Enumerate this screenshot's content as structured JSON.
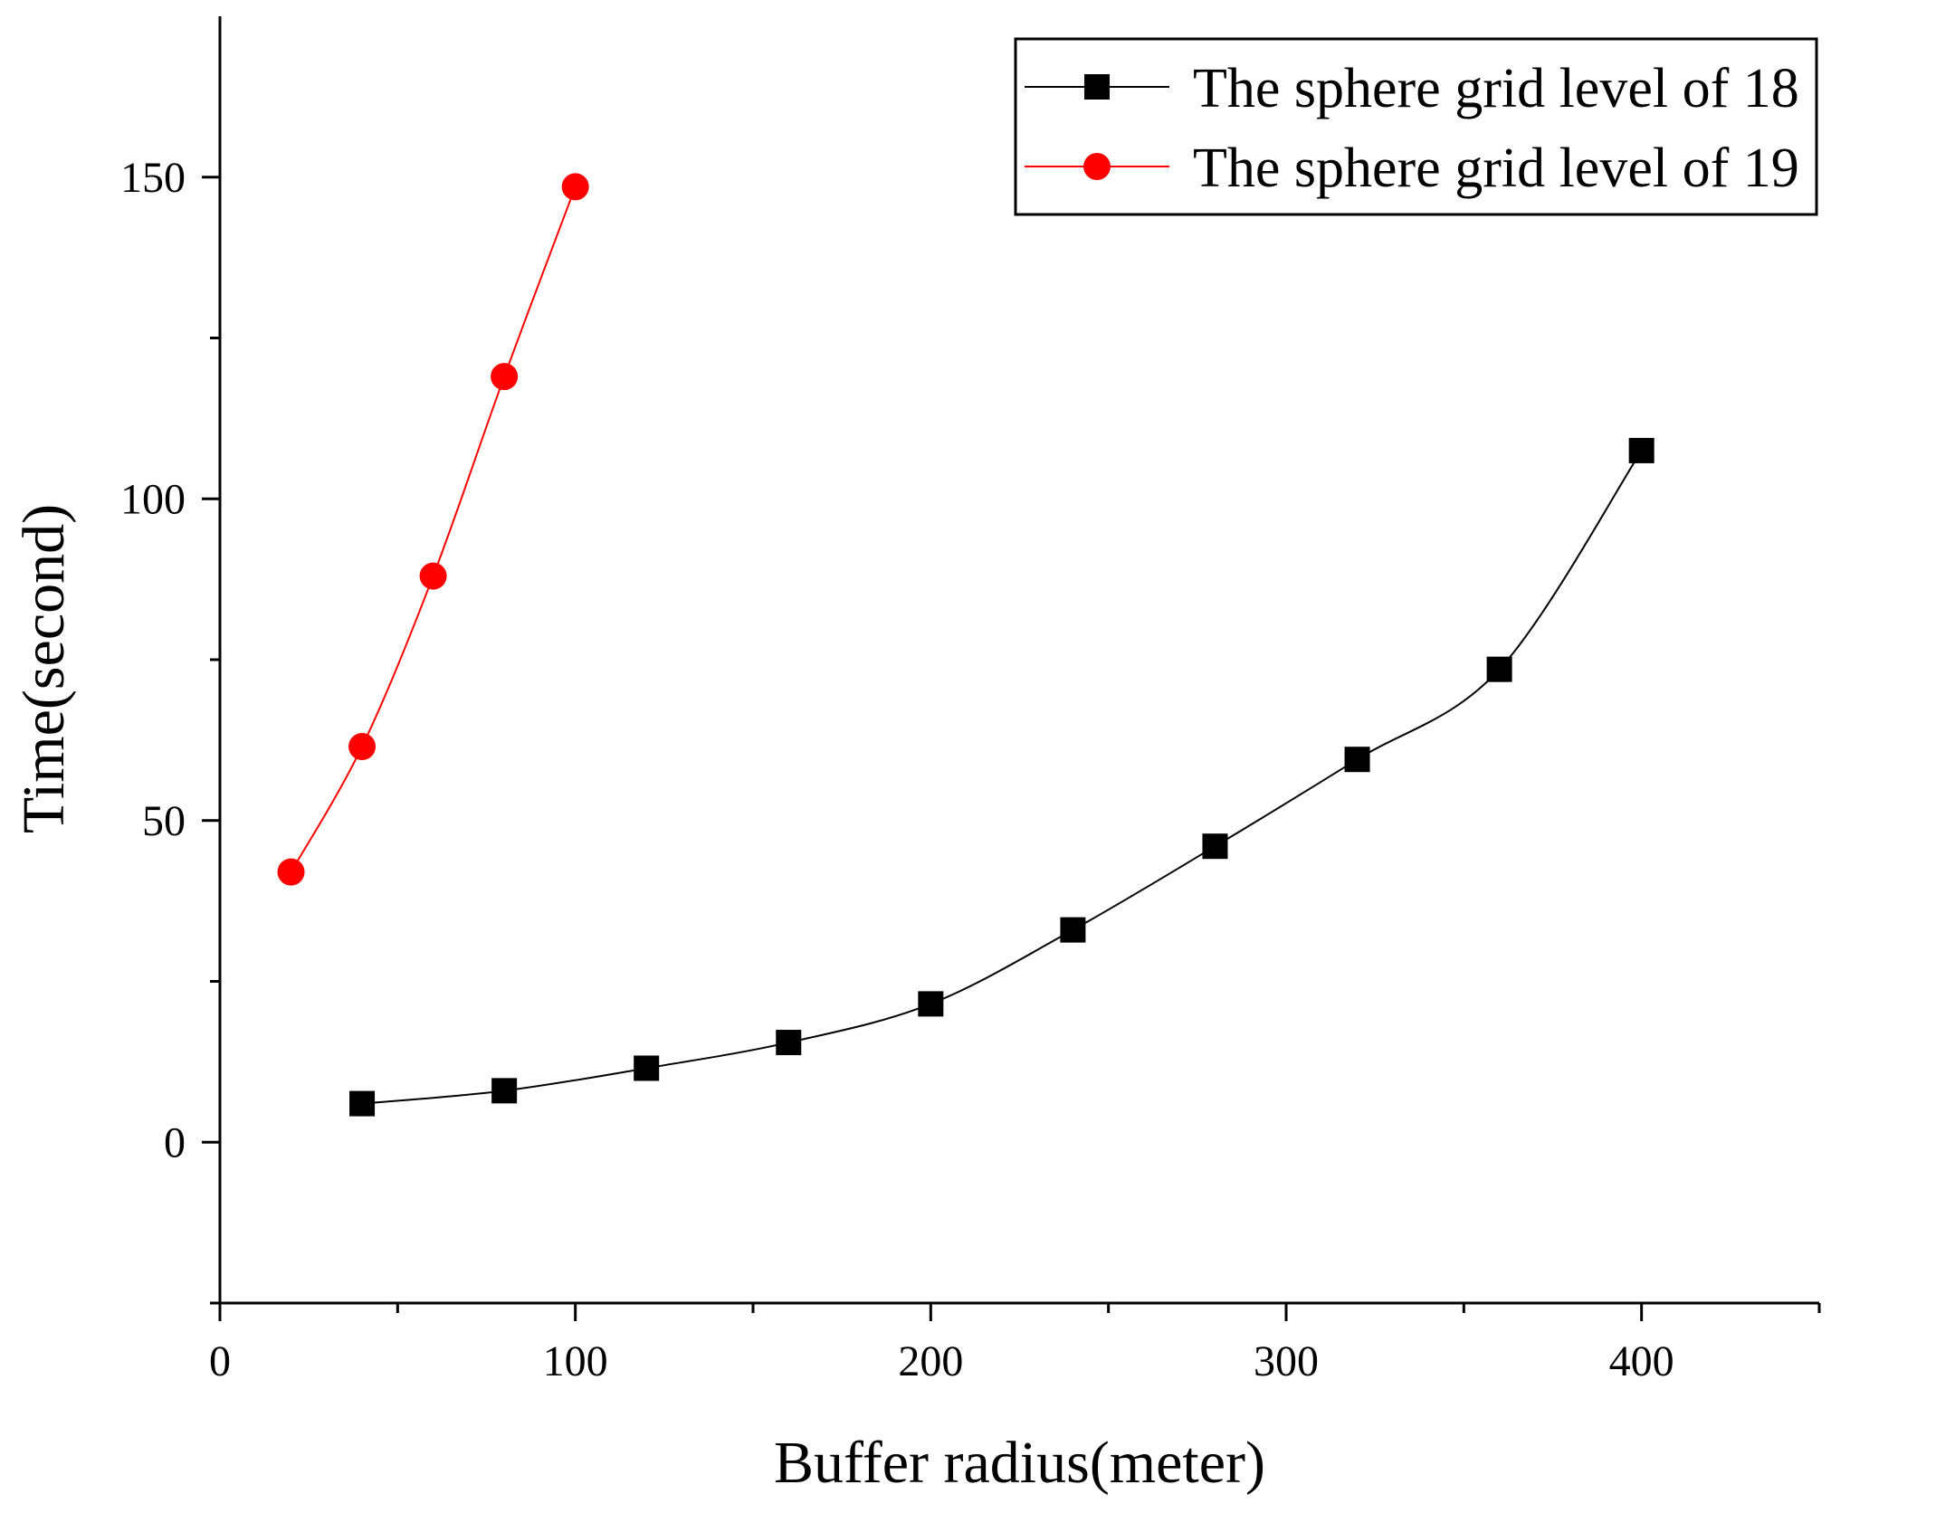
{
  "chart_data": {
    "type": "line",
    "title": "",
    "xlabel": "Buffer radius(meter)",
    "ylabel": "Time(second)",
    "xlim": [
      0,
      450
    ],
    "ylim": [
      -25,
      175
    ],
    "x_ticks": [
      0,
      100,
      200,
      300,
      400
    ],
    "y_ticks": [
      0,
      50,
      100,
      150
    ],
    "x_minor_ticks": [
      50,
      150,
      250,
      350,
      450
    ],
    "y_minor_ticks": [
      -25,
      25,
      75,
      125
    ],
    "grid": false,
    "legend_position": "top-right",
    "series": [
      {
        "name": "The sphere grid level of 18",
        "color": "#000000",
        "marker": "square",
        "x": [
          40,
          80,
          120,
          160,
          200,
          240,
          280,
          320,
          360,
          400
        ],
        "y": [
          6,
          8,
          11.5,
          15.5,
          21.5,
          33,
          46,
          59.5,
          73.5,
          107.5
        ]
      },
      {
        "name": "The sphere grid level of 19",
        "color": "#ff0000",
        "marker": "circle",
        "x": [
          20,
          40,
          60,
          80,
          100
        ],
        "y": [
          42,
          61.5,
          88,
          119,
          148.5
        ]
      }
    ]
  }
}
